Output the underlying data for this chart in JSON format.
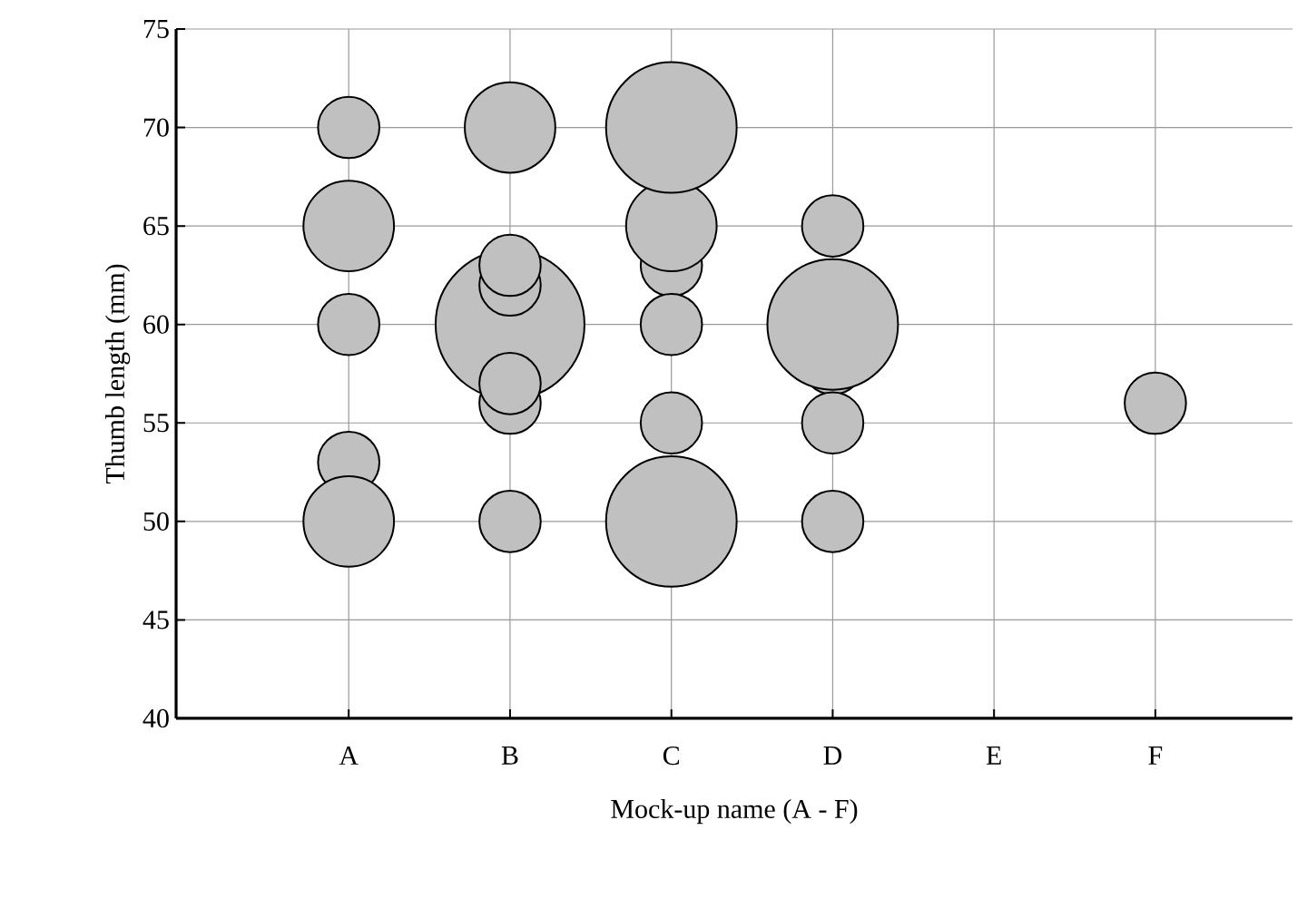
{
  "chart_data": {
    "type": "bubble",
    "xlabel": "Mock-up name (A - F)",
    "ylabel": "Thumb length (mm)",
    "categories": [
      "A",
      "B",
      "C",
      "D",
      "E",
      "F"
    ],
    "series": [
      {
        "color": "#c0c0c0",
        "x": [
          "A",
          "A",
          "A",
          "A",
          "A",
          "B",
          "B",
          "B",
          "B",
          "B",
          "B",
          "B",
          "C",
          "C",
          "C",
          "C",
          "C",
          "C",
          "D",
          "D",
          "D",
          "D",
          "D",
          "F"
        ],
        "values": [
          70,
          65,
          60,
          53,
          50,
          70,
          60,
          56,
          57,
          62,
          63,
          50,
          63,
          65,
          70,
          60,
          55,
          50,
          65,
          58,
          60,
          55,
          50,
          56
        ],
        "sizes": [
          0.17,
          0.37,
          0.17,
          0.17,
          0.37,
          0.37,
          1,
          0.17,
          0.17,
          0.17,
          0.17,
          0.17,
          0.17,
          0.37,
          0.77,
          0.17,
          0.17,
          0.77,
          0.17,
          0.17,
          0.77,
          0.17,
          0.17,
          0.17
        ]
      }
    ],
    "ylim": [
      40,
      75
    ],
    "yticks": [
      40,
      45,
      50,
      55,
      60,
      65,
      70,
      75
    ],
    "grid": true
  }
}
